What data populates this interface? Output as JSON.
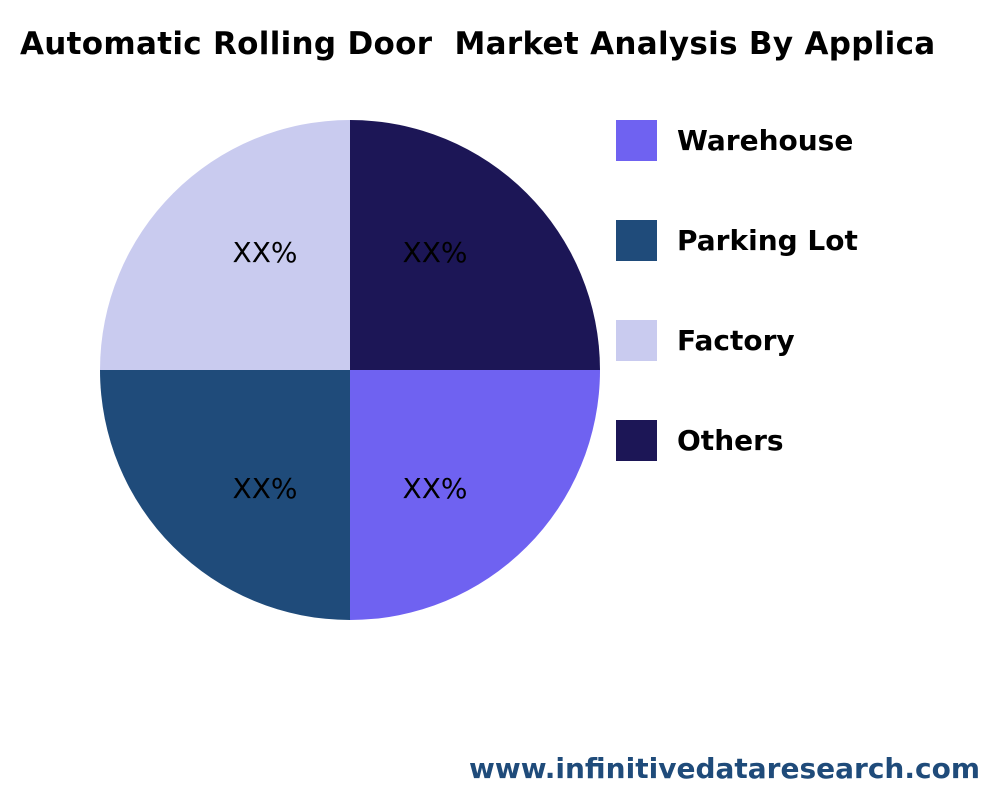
{
  "chart_data": {
    "type": "pie",
    "title": "Automatic Rolling Door  Market Analysis By Applica",
    "categories": [
      "Warehouse",
      "Parking Lot",
      "Factory",
      "Others"
    ],
    "values": [
      25,
      25,
      25,
      25
    ],
    "data_labels": [
      "XX%",
      "XX%",
      "XX%",
      "XX%"
    ],
    "colors": [
      "#6f62f1",
      "#1f4b7a",
      "#c9cbef",
      "#1c1656"
    ],
    "legend_placement": "right"
  },
  "footer": "www.infinitivedataresearch.com"
}
